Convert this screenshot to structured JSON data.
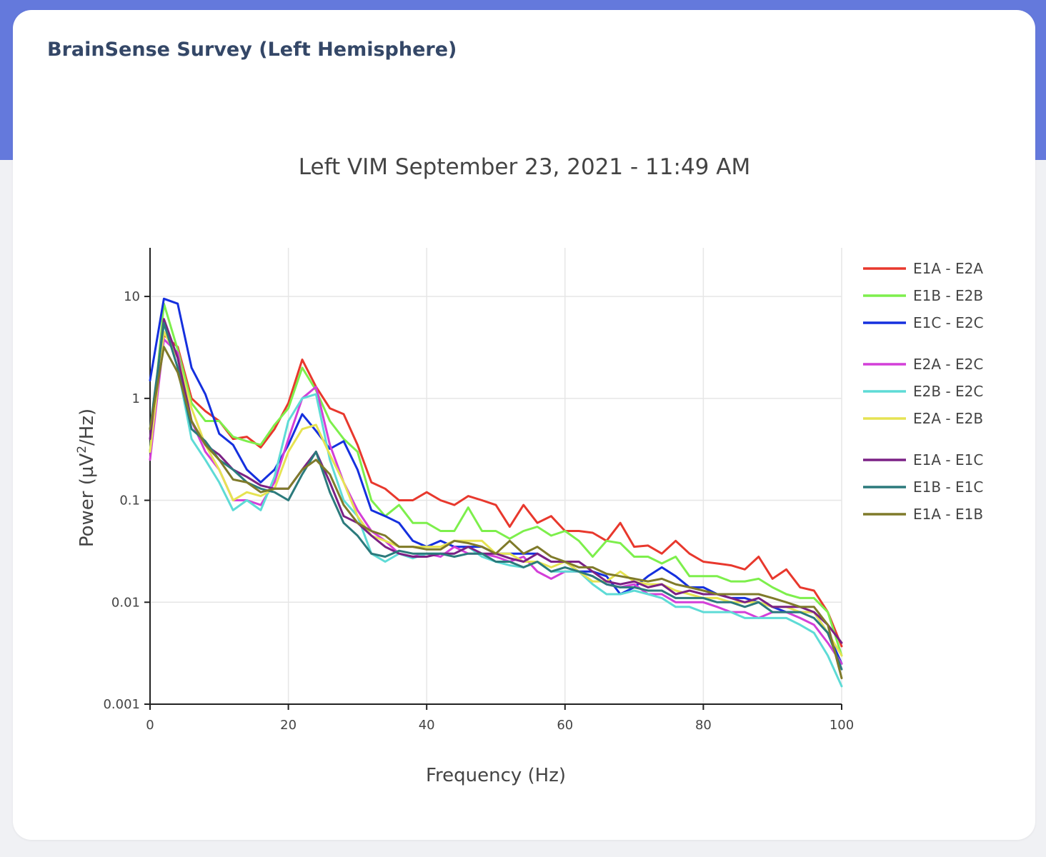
{
  "card": {
    "title": "BrainSense Survey (Left Hemisphere)"
  },
  "colors": {
    "header_band": "#6479dc",
    "page_bg": "#f0f1f4",
    "card_bg": "#ffffff",
    "title_text": "#344767"
  },
  "chart_data": {
    "type": "line",
    "title": "Left VIM  September 23, 2021 - 11:49 AM",
    "xlabel": "Frequency (Hz)",
    "ylabel": "Power (µV²/Hz)",
    "ylabel_parts": [
      "Power (µV",
      "2",
      "/Hz)"
    ],
    "y_scale": "log",
    "xlim": [
      0,
      100
    ],
    "ylim": [
      0.001,
      30
    ],
    "x_ticks": [
      0,
      20,
      40,
      60,
      80,
      100
    ],
    "x_tick_labels": [
      "0",
      "20",
      "40",
      "60",
      "80",
      "100"
    ],
    "y_ticks": [
      0.001,
      0.01,
      0.1,
      1,
      10
    ],
    "y_tick_labels": [
      "0.001",
      "0.01",
      "0.1",
      "1",
      "10"
    ],
    "grid": true,
    "legend_position": "right",
    "legend_groups": [
      [
        0,
        1,
        2
      ],
      [
        3,
        4,
        5
      ],
      [
        6,
        7,
        8
      ]
    ],
    "x": [
      0,
      2,
      4,
      6,
      8,
      10,
      12,
      14,
      16,
      18,
      20,
      22,
      24,
      26,
      28,
      30,
      32,
      34,
      36,
      38,
      40,
      42,
      44,
      46,
      48,
      50,
      52,
      54,
      56,
      58,
      60,
      62,
      64,
      66,
      68,
      70,
      72,
      74,
      76,
      78,
      80,
      82,
      84,
      86,
      88,
      90,
      92,
      94,
      96,
      98,
      100
    ],
    "series": [
      {
        "name": "E1A - E2A",
        "color": "#e8382d",
        "values": [
          0.3,
          4.2,
          3.2,
          1.0,
          0.75,
          0.6,
          0.4,
          0.42,
          0.33,
          0.5,
          0.9,
          2.4,
          1.3,
          0.8,
          0.7,
          0.35,
          0.15,
          0.13,
          0.1,
          0.1,
          0.12,
          0.1,
          0.09,
          0.11,
          0.1,
          0.09,
          0.055,
          0.09,
          0.06,
          0.07,
          0.05,
          0.05,
          0.048,
          0.04,
          0.06,
          0.035,
          0.036,
          0.03,
          0.04,
          0.03,
          0.025,
          0.024,
          0.023,
          0.021,
          0.028,
          0.017,
          0.021,
          0.014,
          0.013,
          0.008,
          0.0037
        ]
      },
      {
        "name": "E1B - E2B",
        "color": "#7def4c",
        "values": [
          0.3,
          8.5,
          3.0,
          0.9,
          0.6,
          0.6,
          0.42,
          0.38,
          0.35,
          0.55,
          0.8,
          2.0,
          1.2,
          0.6,
          0.4,
          0.3,
          0.1,
          0.07,
          0.09,
          0.06,
          0.06,
          0.05,
          0.05,
          0.085,
          0.05,
          0.05,
          0.042,
          0.05,
          0.055,
          0.045,
          0.05,
          0.04,
          0.028,
          0.04,
          0.038,
          0.028,
          0.028,
          0.024,
          0.028,
          0.018,
          0.018,
          0.018,
          0.016,
          0.016,
          0.017,
          0.014,
          0.012,
          0.011,
          0.011,
          0.008,
          0.003
        ]
      },
      {
        "name": "E1C - E2C",
        "color": "#1530de",
        "values": [
          1.5,
          9.5,
          8.5,
          2.0,
          1.1,
          0.45,
          0.35,
          0.2,
          0.15,
          0.2,
          0.35,
          0.7,
          0.48,
          0.32,
          0.38,
          0.2,
          0.08,
          0.07,
          0.06,
          0.04,
          0.035,
          0.04,
          0.035,
          0.035,
          0.035,
          0.03,
          0.03,
          0.03,
          0.03,
          0.025,
          0.025,
          0.02,
          0.02,
          0.018,
          0.012,
          0.014,
          0.018,
          0.022,
          0.018,
          0.014,
          0.014,
          0.012,
          0.011,
          0.011,
          0.01,
          0.009,
          0.008,
          0.008,
          0.008,
          0.005,
          0.0025
        ]
      },
      {
        "name": "E2A - E2C",
        "color": "#d33fd8",
        "values": [
          0.25,
          3.8,
          2.8,
          0.6,
          0.3,
          0.2,
          0.1,
          0.1,
          0.09,
          0.15,
          0.4,
          1.0,
          1.3,
          0.35,
          0.15,
          0.08,
          0.05,
          0.04,
          0.03,
          0.028,
          0.03,
          0.028,
          0.035,
          0.03,
          0.03,
          0.028,
          0.025,
          0.028,
          0.02,
          0.017,
          0.02,
          0.02,
          0.018,
          0.015,
          0.014,
          0.015,
          0.012,
          0.012,
          0.01,
          0.01,
          0.01,
          0.009,
          0.008,
          0.008,
          0.007,
          0.008,
          0.008,
          0.007,
          0.006,
          0.004,
          0.0025
        ]
      },
      {
        "name": "E2B - E2C",
        "color": "#5edbd6",
        "values": [
          0.3,
          5.5,
          2.0,
          0.4,
          0.25,
          0.15,
          0.08,
          0.1,
          0.08,
          0.17,
          0.6,
          1.0,
          1.1,
          0.25,
          0.1,
          0.07,
          0.03,
          0.025,
          0.03,
          0.027,
          0.03,
          0.03,
          0.03,
          0.035,
          0.028,
          0.025,
          0.023,
          0.022,
          0.025,
          0.02,
          0.02,
          0.02,
          0.015,
          0.012,
          0.012,
          0.013,
          0.012,
          0.011,
          0.009,
          0.009,
          0.008,
          0.008,
          0.008,
          0.007,
          0.007,
          0.007,
          0.007,
          0.006,
          0.005,
          0.003,
          0.0015
        ]
      },
      {
        "name": "E2A - E2B",
        "color": "#e6e352",
        "values": [
          0.3,
          4.5,
          2.5,
          0.8,
          0.35,
          0.2,
          0.1,
          0.12,
          0.11,
          0.13,
          0.3,
          0.5,
          0.55,
          0.28,
          0.15,
          0.07,
          0.045,
          0.04,
          0.035,
          0.035,
          0.035,
          0.035,
          0.04,
          0.04,
          0.04,
          0.03,
          0.03,
          0.025,
          0.025,
          0.022,
          0.025,
          0.02,
          0.016,
          0.016,
          0.02,
          0.016,
          0.015,
          0.015,
          0.013,
          0.012,
          0.011,
          0.011,
          0.01,
          0.01,
          0.01,
          0.009,
          0.009,
          0.008,
          0.008,
          0.005,
          0.003
        ]
      },
      {
        "name": "E1A - E1C",
        "color": "#7b2185",
        "values": [
          0.4,
          6.0,
          2.5,
          0.6,
          0.35,
          0.28,
          0.2,
          0.17,
          0.14,
          0.13,
          0.13,
          0.2,
          0.3,
          0.15,
          0.07,
          0.06,
          0.045,
          0.035,
          0.03,
          0.028,
          0.028,
          0.03,
          0.03,
          0.035,
          0.03,
          0.03,
          0.027,
          0.025,
          0.03,
          0.025,
          0.025,
          0.025,
          0.02,
          0.016,
          0.015,
          0.016,
          0.014,
          0.015,
          0.012,
          0.013,
          0.012,
          0.012,
          0.011,
          0.01,
          0.011,
          0.009,
          0.009,
          0.009,
          0.008,
          0.006,
          0.004
        ]
      },
      {
        "name": "E1B - E1C",
        "color": "#2b7a7c",
        "values": [
          0.5,
          5.5,
          2.0,
          0.5,
          0.38,
          0.25,
          0.2,
          0.15,
          0.13,
          0.12,
          0.1,
          0.18,
          0.3,
          0.12,
          0.06,
          0.045,
          0.03,
          0.028,
          0.032,
          0.03,
          0.03,
          0.03,
          0.028,
          0.03,
          0.03,
          0.025,
          0.025,
          0.022,
          0.025,
          0.02,
          0.022,
          0.02,
          0.018,
          0.015,
          0.014,
          0.014,
          0.013,
          0.013,
          0.011,
          0.011,
          0.011,
          0.01,
          0.01,
          0.009,
          0.01,
          0.008,
          0.008,
          0.008,
          0.007,
          0.005,
          0.0022
        ]
      },
      {
        "name": "E1A - E1B",
        "color": "#7f7a2a",
        "values": [
          0.5,
          3.2,
          1.8,
          0.6,
          0.35,
          0.25,
          0.16,
          0.15,
          0.12,
          0.13,
          0.13,
          0.2,
          0.25,
          0.18,
          0.09,
          0.06,
          0.05,
          0.045,
          0.035,
          0.035,
          0.033,
          0.033,
          0.04,
          0.038,
          0.035,
          0.03,
          0.04,
          0.03,
          0.035,
          0.028,
          0.025,
          0.022,
          0.022,
          0.019,
          0.018,
          0.017,
          0.016,
          0.017,
          0.015,
          0.014,
          0.013,
          0.012,
          0.012,
          0.012,
          0.012,
          0.011,
          0.01,
          0.009,
          0.009,
          0.006,
          0.0018
        ]
      }
    ]
  }
}
